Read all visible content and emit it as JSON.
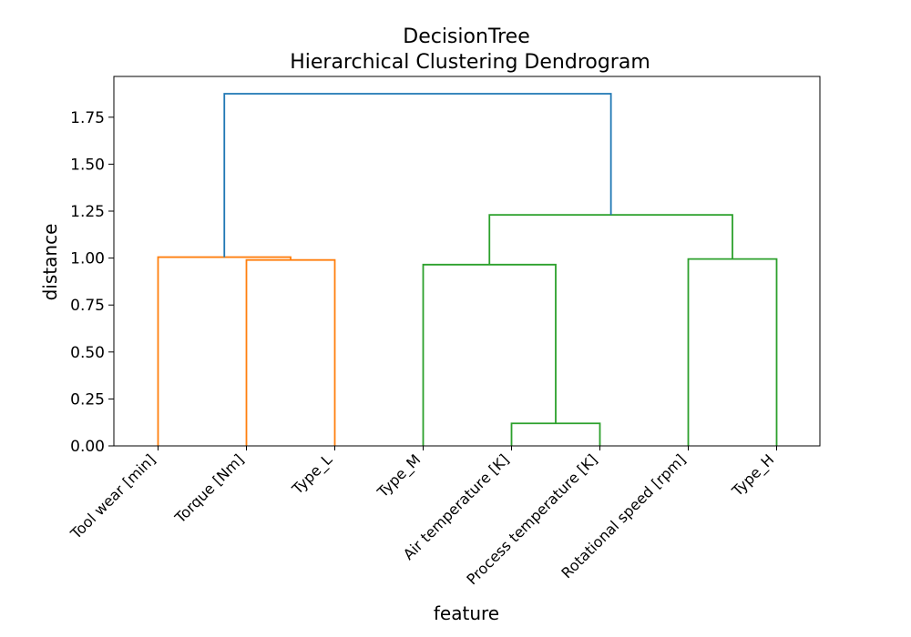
{
  "chart_data": {
    "type": "dendrogram",
    "title": "DecisionTree",
    "subtitle": "Hierarchical Clustering Dendrogram",
    "xlabel": "feature",
    "ylabel": "distance",
    "ylim": [
      0,
      1.875
    ],
    "yticks": [
      "0.00",
      "0.25",
      "0.50",
      "0.75",
      "1.00",
      "1.25",
      "1.50",
      "1.75"
    ],
    "ytick_values": [
      0,
      0.25,
      0.5,
      0.75,
      1.0,
      1.25,
      1.5,
      1.75
    ],
    "leaves": [
      "Tool wear [min]",
      "Torque [Nm]",
      "Type_L",
      "Type_M",
      "Air temperature [K]",
      "Process temperature [K]",
      "Rotational speed [rpm]",
      "Type_H"
    ],
    "colors": {
      "orange": "#ff7f0e",
      "green": "#2ca02c",
      "blue": "#1f77b4"
    },
    "links": [
      {
        "left": [
          1
        ],
        "right": [
          2
        ],
        "height": 0.99,
        "color": "orange"
      },
      {
        "left": [
          0
        ],
        "right": [
          1,
          2
        ],
        "height": 1.005,
        "color": "orange"
      },
      {
        "left": [
          4
        ],
        "right": [
          5
        ],
        "height": 0.12,
        "color": "green"
      },
      {
        "left": [
          3
        ],
        "right": [
          4,
          5
        ],
        "height": 0.965,
        "color": "green"
      },
      {
        "left": [
          6
        ],
        "right": [
          7
        ],
        "height": 0.995,
        "color": "green"
      },
      {
        "left": [
          3,
          4,
          5
        ],
        "right": [
          6,
          7
        ],
        "height": 1.23,
        "color": "green"
      },
      {
        "left": [
          0,
          1,
          2
        ],
        "right": [
          3,
          4,
          5,
          6,
          7
        ],
        "height": 1.875,
        "color": "blue"
      }
    ]
  }
}
